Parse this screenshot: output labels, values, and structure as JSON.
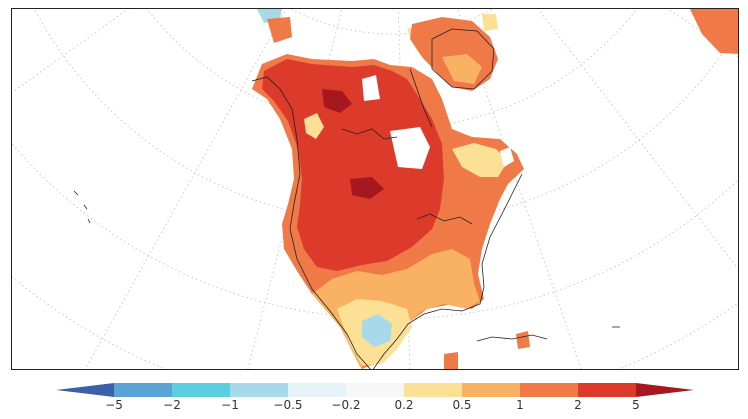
{
  "map": {
    "projection": "polar-stereographic",
    "region": "North America",
    "graticule": "dotted",
    "colormap": [
      "#3d5ea8",
      "#5aa3d4",
      "#5dcde0",
      "#a7d9ea",
      "#e3f3f8",
      "#f7f7f7",
      "#fbe095",
      "#f9b263",
      "#ef7a47",
      "#dc3a2a",
      "#a5181f"
    ]
  },
  "colorbar": {
    "tick_labels": [
      "−5",
      "−2",
      "−1",
      "−0.5",
      "−0.2",
      "0.2",
      "0.5",
      "1",
      "2",
      "5"
    ],
    "extend": "both"
  }
}
